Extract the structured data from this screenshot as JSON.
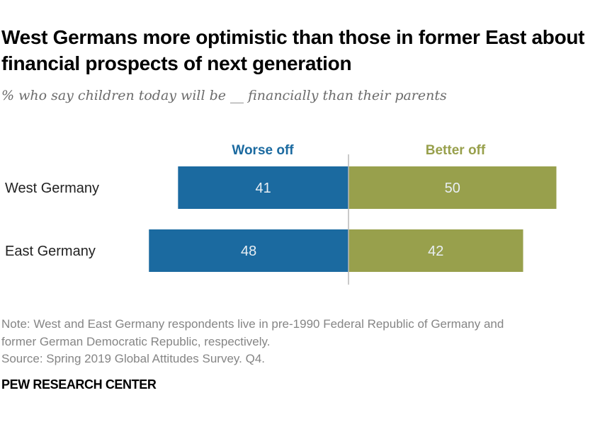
{
  "title": "West Germans more optimistic than those in former East about financial prospects of next generation",
  "subtitle": "% who say children today will be __ financially than their parents",
  "colors": {
    "worse": "#1b6aa0",
    "better": "#98a04c",
    "divider": "#b8b8b8",
    "label": "#222222",
    "value_text": "#e8eef3"
  },
  "chart_data": {
    "type": "bar",
    "orientation": "horizontal",
    "layout": "diverging",
    "categories": [
      "West Germany",
      "East Germany"
    ],
    "series": [
      {
        "name": "Worse off",
        "values": [
          41,
          48
        ],
        "direction": "left",
        "color": "#1b6aa0"
      },
      {
        "name": "Better off",
        "values": [
          50,
          42
        ],
        "direction": "right",
        "color": "#98a04c"
      }
    ],
    "legend_position": "top",
    "grid": false,
    "data_labels": true
  },
  "note": {
    "line1": "Note: West and East Germany respondents live in pre-1990 Federal Republic of Germany and",
    "line2": "former German Democratic Republic, respectively.",
    "source": "Source: Spring 2019 Global Attitudes Survey. Q4."
  },
  "footer": "PEW RESEARCH CENTER"
}
